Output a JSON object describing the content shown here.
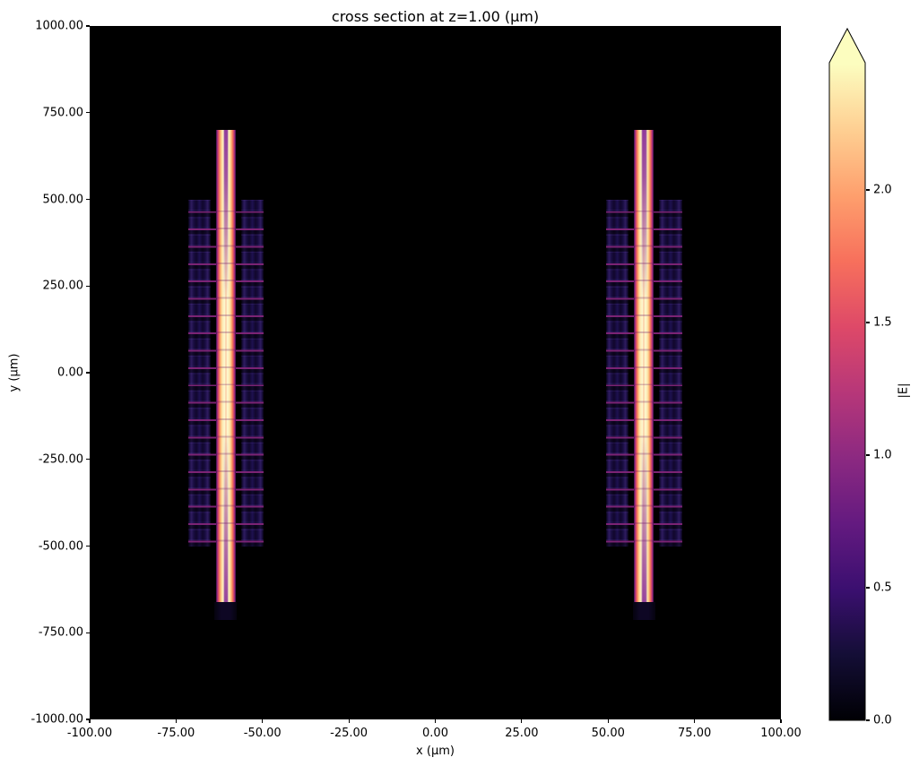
{
  "title": "cross section at z=1.00 (μm)",
  "chart_data": {
    "type": "heatmap",
    "title": "cross section at z=1.00 (μm)",
    "xlabel": "x (μm)",
    "ylabel": "y (μm)",
    "xlim": [
      -100,
      100
    ],
    "ylim": [
      -1000,
      1000
    ],
    "x_ticks": [
      {
        "v": -100,
        "label": "-100.00"
      },
      {
        "v": -75,
        "label": "-75.00"
      },
      {
        "v": -50,
        "label": "-50.00"
      },
      {
        "v": -25,
        "label": "-25.00"
      },
      {
        "v": 0,
        "label": "0.00"
      },
      {
        "v": 25,
        "label": "25.00"
      },
      {
        "v": 50,
        "label": "50.00"
      },
      {
        "v": 75,
        "label": "75.00"
      },
      {
        "v": 100,
        "label": "100.00"
      }
    ],
    "y_ticks": [
      {
        "v": 1000,
        "label": "1000.00"
      },
      {
        "v": 750,
        "label": "750.00"
      },
      {
        "v": 500,
        "label": "500.00"
      },
      {
        "v": 250,
        "label": "250.00"
      },
      {
        "v": 0,
        "label": "0.00"
      },
      {
        "v": -250,
        "label": "-250.00"
      },
      {
        "v": -500,
        "label": "-500.00"
      },
      {
        "v": -750,
        "label": "-750.00"
      },
      {
        "v": -1000,
        "label": "-1000.00"
      }
    ],
    "background_value": 0.0,
    "colormap": "magma",
    "colorbar": {
      "label": "|E|",
      "ticks": [
        {
          "v": 0.0,
          "label": "0.0"
        },
        {
          "v": 0.5,
          "label": "0.5"
        },
        {
          "v": 1.0,
          "label": "1.0"
        },
        {
          "v": 1.5,
          "label": "1.5"
        },
        {
          "v": 2.0,
          "label": "2.0"
        }
      ],
      "vmin": 0.0,
      "vmax": 2.48,
      "extend": "max",
      "magma_stops": [
        "#000004",
        "#140e36",
        "#3b0f70",
        "#641a80",
        "#8c2981",
        "#b73779",
        "#de4968",
        "#f7705c",
        "#fe9f6d",
        "#fecf92",
        "#fcfdbf"
      ]
    },
    "structures": [
      {
        "x_center_um": -60.6
      },
      {
        "x_center_um": 60.4
      }
    ],
    "waveguide": {
      "half_width_um": 2.85,
      "y_top_um": 700,
      "y_bottom_um": -662,
      "gradient_stops": [
        [
          "#1a0a2e",
          0
        ],
        [
          "#7a2178",
          3.5
        ],
        [
          "#c03a77",
          9
        ],
        [
          "#ee6a5c",
          15
        ],
        [
          "#fb9a66",
          20
        ],
        [
          "#fdce8a",
          26
        ],
        [
          "#fdeab6",
          33
        ],
        [
          "#fdf6cb",
          42
        ],
        [
          "#fdf8d0",
          50
        ]
      ],
      "core_tint": "rgba(132,42,148,0.93)",
      "center_line": "rgba(250,170,130,0.4)"
    },
    "grating": {
      "outer_half_width_um": 10.95,
      "inner_half_gap_um": 4.4,
      "y_top_um": 500,
      "y_bottom_um": -500,
      "period_um": 50,
      "band_stripe_stops": [
        [
          "#070313",
          0
        ],
        [
          "#1e1148",
          8
        ],
        [
          "#2f1c60",
          14
        ],
        [
          "#180d40",
          25
        ],
        [
          "#11072c",
          36
        ],
        [
          "#1e1150",
          50
        ],
        [
          "#11072c",
          64
        ],
        [
          "#180d40",
          75
        ],
        [
          "#2f1c60",
          86
        ],
        [
          "#1e1148",
          92
        ],
        [
          "#070313",
          100
        ]
      ],
      "line_color": "rgba(135,38,125,0.9)",
      "gap_shade": "rgba(0,0,0,0.45)"
    },
    "stub": {
      "half_width_um": 3.25,
      "y_top_um": -662,
      "y_bottom_um": -712,
      "color_edge": "#05030e",
      "color_mid": "#0e0724"
    }
  }
}
